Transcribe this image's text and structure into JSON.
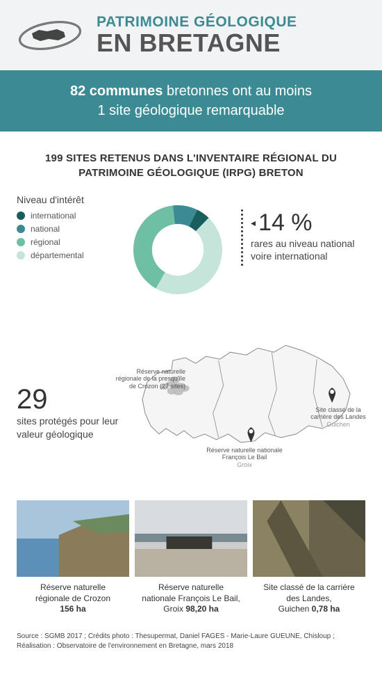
{
  "header": {
    "title_small": "PATRIMOINE GÉOLOGIQUE",
    "title_big": "EN BRETAGNE"
  },
  "banner": {
    "bold_lead": "82 communes",
    "text_line1_rest": " bretonnes ont au moins",
    "text_line2": "1 site géologique remarquable"
  },
  "subheading": "199 SITES RETENUS DANS L'INVENTAIRE RÉGIONAL DU PATRIMOINE GÉOLOGIQUE (IRPG) BRETON",
  "donut": {
    "type": "donut",
    "legend_title": "Niveau d'intérêt",
    "levels": [
      {
        "label": "international",
        "color": "#1a5d5d"
      },
      {
        "label": "national",
        "color": "#3c8b94"
      },
      {
        "label": "régional",
        "color": "#6fbfa5"
      },
      {
        "label": "départemental",
        "color": "#c5e5db"
      }
    ],
    "slices_pct": [
      5,
      9,
      40,
      46
    ],
    "slice_colors": [
      "#1a5d5d",
      "#3c8b94",
      "#6fbfa5",
      "#c5e5db"
    ],
    "inner_radius_ratio": 0.58,
    "background_color": "#ffffff",
    "label_fontsize": 12
  },
  "stat_right": {
    "percent": "14 %",
    "text": "rares au niveau national voire international"
  },
  "map": {
    "stat_number": "29",
    "stat_text": "sites protégés pour leur valeur géologique",
    "fill_color": "#f5f5f5",
    "stroke_color": "#888888",
    "reserve_fill": "#b8b8b8",
    "label1_line1": "Réserve naturelle",
    "label1_line2": "régionale de la presqu'île",
    "label1_line3": "de Crozon (27 sites)",
    "label2_line1": "Réserve naturelle nationale",
    "label2_line2": "François Le Bail",
    "label2_sub": "Groix",
    "label3_line1": "Site classé de la",
    "label3_line2": "carrière des Landes",
    "label3_sub": "Guichen"
  },
  "photos": [
    {
      "caption_line1": "Réserve naturelle",
      "caption_line2": "régionale de Crozon",
      "caption_bold": "156 ha",
      "colors": [
        "#5b8fb8",
        "#a8c5dc",
        "#6b8a5e",
        "#8a7c5a"
      ]
    },
    {
      "caption_line1": "Réserve naturelle",
      "caption_line2_a": "nationale François Le Bail,",
      "caption_line3_a": "Groix ",
      "caption_bold": "98,20 ha",
      "colors": [
        "#d8dce0",
        "#7a8a92",
        "#3a3832",
        "#b8b0a0"
      ]
    },
    {
      "caption_line1": "Site classé de la carrière",
      "caption_line2": "des Landes,",
      "caption_line3_a": "Guichen ",
      "caption_bold": "0,78 ha",
      "colors": [
        "#8a8262",
        "#5a5640",
        "#4a4838",
        "#6a624a"
      ]
    }
  ],
  "footer": {
    "line1": "Source : SGMB 2017 ; Crédits photo : Thesupermat, Daniel FAGES - Marie-Laure GUEUNE, Chisloup ;",
    "line2": "Réalisation : Observatoire de l'environnement en Bretagne, mars 2018"
  }
}
